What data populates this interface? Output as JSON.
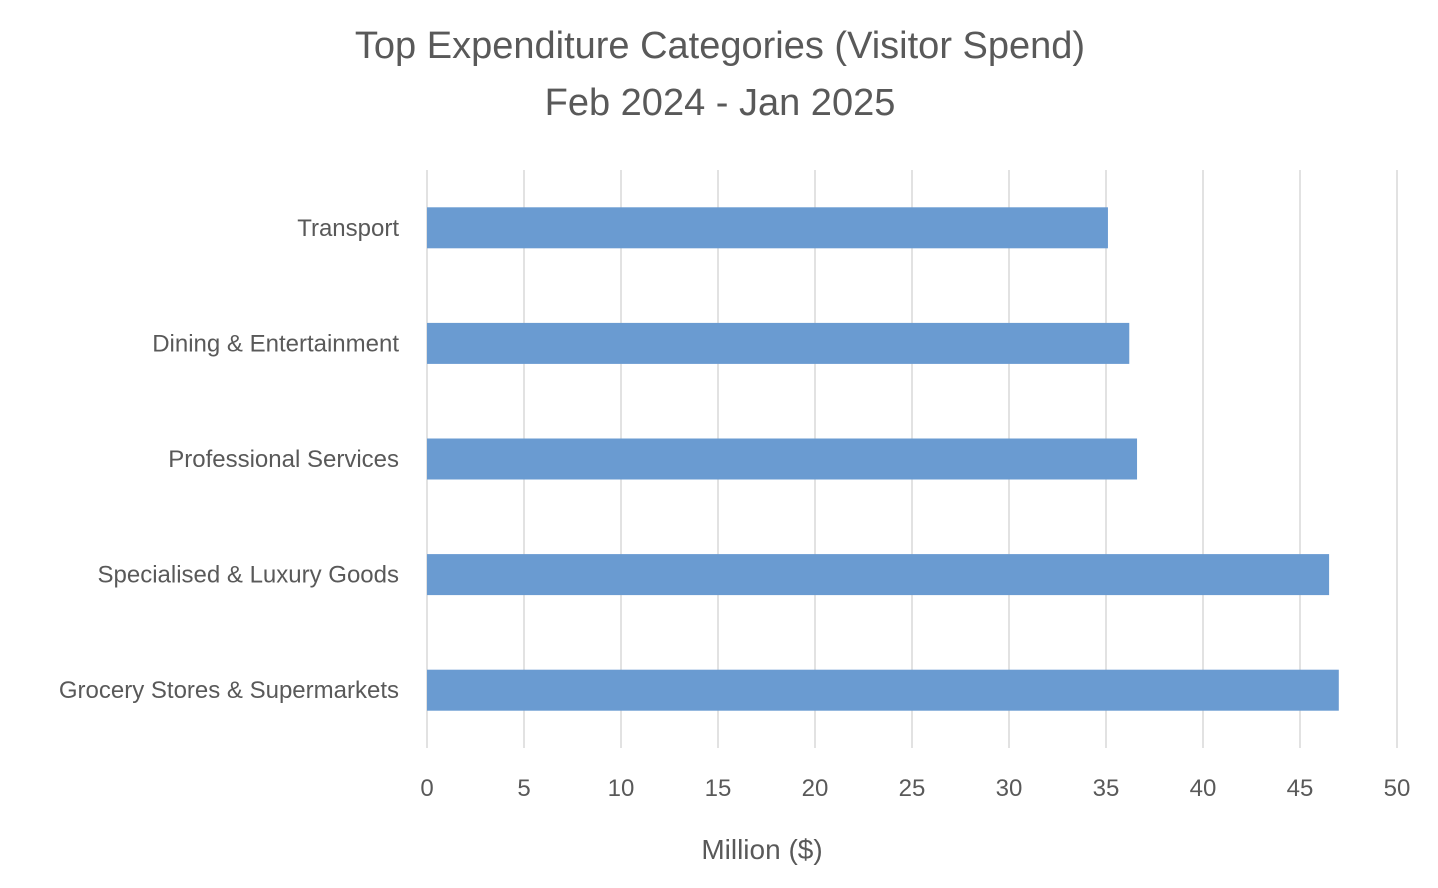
{
  "chart_data": {
    "type": "bar",
    "orientation": "horizontal",
    "title": "Top Expenditure Categories (Visitor Spend)",
    "subtitle": "Feb 2024 - Jan 2025",
    "xlabel": "Million ($)",
    "ylabel": "",
    "categories": [
      "Transport",
      "Dining & Entertainment",
      "Professional Services",
      "Specialised & Luxury Goods",
      "Grocery Stores & Supermarkets"
    ],
    "values": [
      35.1,
      36.2,
      36.6,
      46.5,
      47.0
    ],
    "xlim": [
      0,
      50
    ],
    "xticks": [
      "0",
      "5",
      "10",
      "15",
      "20",
      "25",
      "30",
      "35",
      "40",
      "45",
      "50"
    ],
    "grid": true,
    "legend": "none",
    "bar_color": "#6a9bd1",
    "grid_color": "#d9d9d9",
    "text_color": "#595959"
  }
}
